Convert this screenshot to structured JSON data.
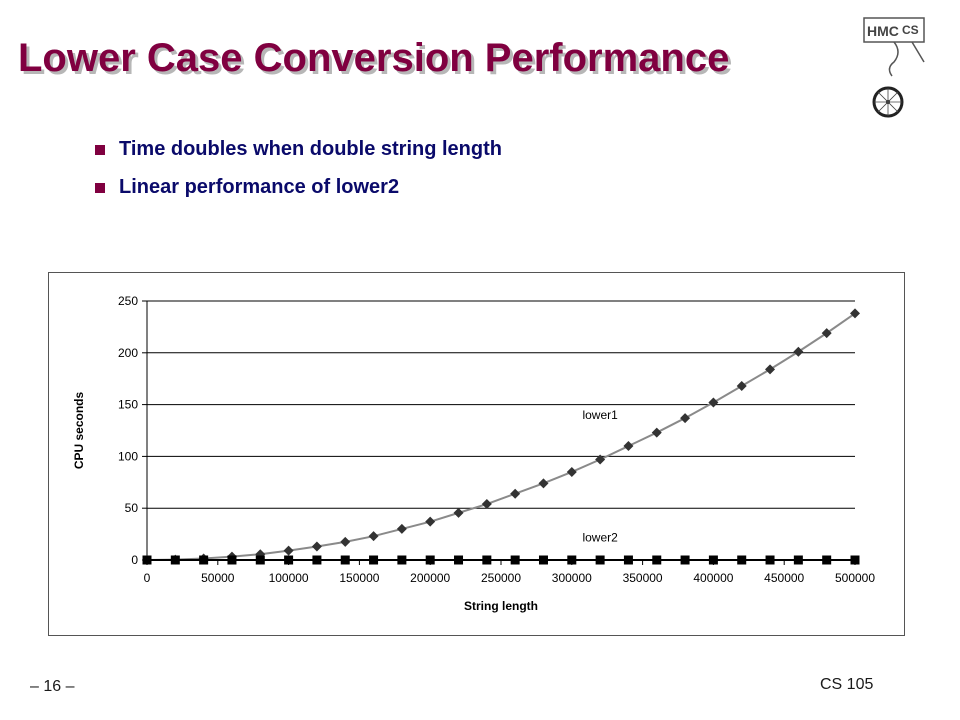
{
  "slide": {
    "title": "Lower Case Conversion Performance",
    "bullets": [
      "Time doubles when double string length",
      "Linear performance of lower2"
    ],
    "page_number": "– 16 –",
    "course": "CS 105",
    "logo": {
      "icon": "hmc-cs-logo-icon",
      "text_hmc": "HMC",
      "text_cs": "CS"
    }
  },
  "chart_data": {
    "type": "line",
    "title": "",
    "xlabel": "String length",
    "ylabel": "CPU seconds",
    "xlim": [
      0,
      500000
    ],
    "ylim": [
      0,
      250
    ],
    "xticks": [
      0,
      50000,
      100000,
      150000,
      200000,
      250000,
      300000,
      350000,
      400000,
      450000,
      500000
    ],
    "yticks": [
      0,
      50,
      100,
      150,
      200,
      250
    ],
    "grid": {
      "horizontal": true,
      "vertical": false
    },
    "x": [
      0,
      20000,
      40000,
      60000,
      80000,
      100000,
      120000,
      140000,
      160000,
      180000,
      200000,
      220000,
      240000,
      260000,
      280000,
      300000,
      320000,
      340000,
      360000,
      380000,
      400000,
      420000,
      440000,
      460000,
      480000,
      500000
    ],
    "series": [
      {
        "name": "lower1",
        "color": "#333333",
        "marker": "diamond",
        "values": [
          0,
          0.4,
          1.4,
          3.2,
          5.6,
          9,
          13,
          17.5,
          23,
          30,
          37,
          45.5,
          54,
          64,
          74,
          85,
          97,
          110,
          123,
          137,
          152,
          168,
          184,
          201,
          219,
          238
        ]
      },
      {
        "name": "lower2",
        "color": "#000000",
        "marker": "square",
        "values": [
          0,
          0,
          0,
          0,
          0,
          0,
          0,
          0,
          0,
          0,
          0,
          0,
          0,
          0,
          0,
          0,
          0,
          0,
          0,
          0,
          0,
          0,
          0,
          0,
          0,
          0
        ]
      }
    ],
    "annotations": [
      {
        "text": "lower1",
        "x": 320000,
        "y": 136
      },
      {
        "text": "lower2",
        "x": 320000,
        "y": 18
      }
    ]
  }
}
